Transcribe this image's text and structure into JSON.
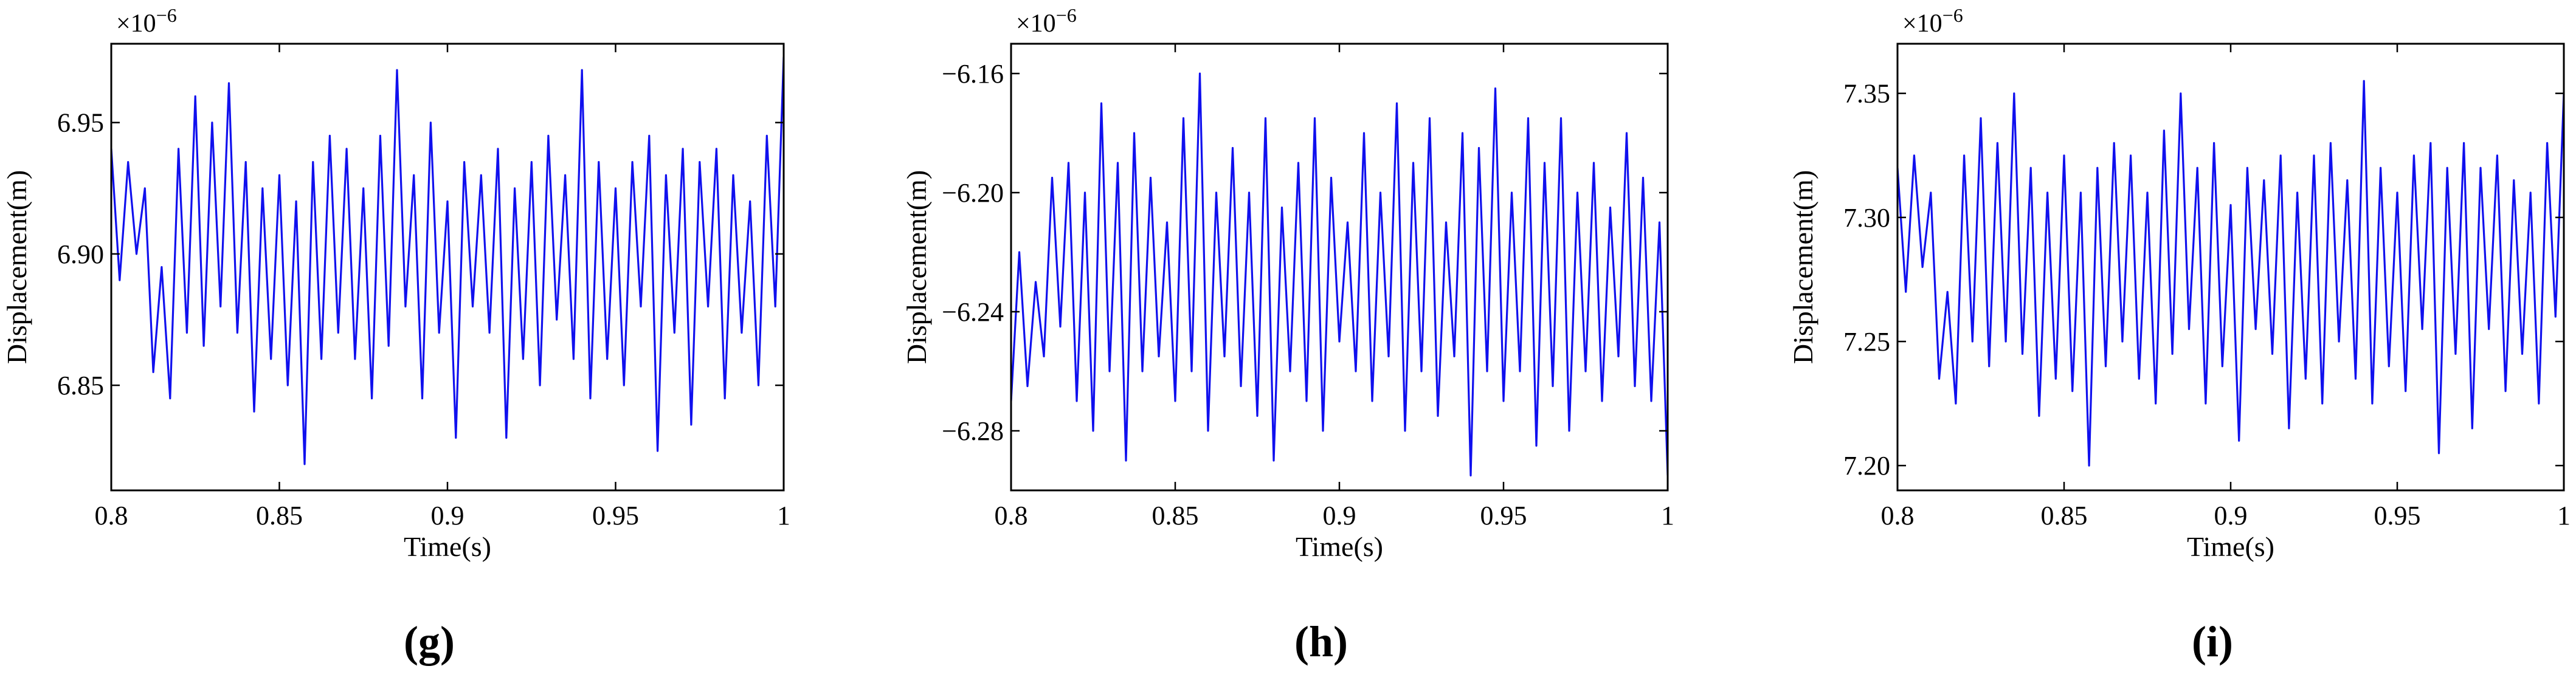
{
  "chart_data": [
    {
      "type": "line",
      "panel_label": "(g)",
      "xlabel": "Time(s)",
      "ylabel": "Displacement(m)",
      "y_exponent": "×10",
      "y_exponent_power": "−6",
      "xlim": [
        0.8,
        1.0
      ],
      "ylim": [
        6.81,
        6.98
      ],
      "x_ticks": [
        0.8,
        0.85,
        0.9,
        0.95,
        1.0
      ],
      "x_tick_labels": [
        "0.8",
        "0.85",
        "0.9",
        "0.95",
        "1"
      ],
      "y_ticks": [
        6.85,
        6.9,
        6.95
      ],
      "y_tick_labels": [
        "6.85",
        "6.90",
        "6.95"
      ],
      "grid": false,
      "color": "#1010ee",
      "series": [
        {
          "x": [
            0.8,
            0.8025,
            0.805,
            0.8075,
            0.81,
            0.8125,
            0.815,
            0.8175,
            0.82,
            0.8225,
            0.825,
            0.8275,
            0.83,
            0.8325,
            0.835,
            0.8375,
            0.84,
            0.8425,
            0.845,
            0.8475,
            0.85,
            0.8525,
            0.855,
            0.8575,
            0.86,
            0.8625,
            0.865,
            0.8675,
            0.87,
            0.8725,
            0.875,
            0.8775,
            0.88,
            0.8825,
            0.885,
            0.8875,
            0.89,
            0.8925,
            0.895,
            0.8975,
            0.9,
            0.9025,
            0.905,
            0.9075,
            0.91,
            0.9125,
            0.915,
            0.9175,
            0.92,
            0.9225,
            0.925,
            0.9275,
            0.93,
            0.9325,
            0.935,
            0.9375,
            0.94,
            0.9425,
            0.945,
            0.9475,
            0.95,
            0.9525,
            0.955,
            0.9575,
            0.96,
            0.9625,
            0.965,
            0.9675,
            0.97,
            0.9725,
            0.975,
            0.9775,
            0.98,
            0.9825,
            0.985,
            0.9875,
            0.99,
            0.9925,
            0.995,
            0.9975,
            1.0
          ],
          "y": [
            6.94,
            6.89,
            6.935,
            6.9,
            6.925,
            6.855,
            6.895,
            6.845,
            6.94,
            6.87,
            6.96,
            6.865,
            6.95,
            6.88,
            6.965,
            6.87,
            6.935,
            6.84,
            6.925,
            6.86,
            6.93,
            6.85,
            6.92,
            6.82,
            6.935,
            6.86,
            6.945,
            6.87,
            6.94,
            6.86,
            6.925,
            6.845,
            6.945,
            6.865,
            6.97,
            6.88,
            6.93,
            6.845,
            6.95,
            6.87,
            6.92,
            6.83,
            6.935,
            6.88,
            6.93,
            6.87,
            6.94,
            6.83,
            6.925,
            6.86,
            6.935,
            6.85,
            6.945,
            6.875,
            6.93,
            6.86,
            6.97,
            6.845,
            6.935,
            6.86,
            6.925,
            6.85,
            6.935,
            6.88,
            6.945,
            6.825,
            6.93,
            6.87,
            6.94,
            6.835,
            6.935,
            6.88,
            6.94,
            6.845,
            6.93,
            6.87,
            6.92,
            6.85,
            6.945,
            6.88,
            6.975
          ]
        }
      ]
    },
    {
      "type": "line",
      "panel_label": "(h)",
      "xlabel": "Time(s)",
      "ylabel": "Displacement(m)",
      "y_exponent": "×10",
      "y_exponent_power": "−6",
      "xlim": [
        0.8,
        1.0
      ],
      "ylim": [
        -6.3,
        -6.15
      ],
      "x_ticks": [
        0.8,
        0.85,
        0.9,
        0.95,
        1.0
      ],
      "x_tick_labels": [
        "0.8",
        "0.85",
        "0.9",
        "0.95",
        "1"
      ],
      "y_ticks": [
        -6.28,
        -6.24,
        -6.2,
        -6.16
      ],
      "y_tick_labels": [
        "−6.28",
        "−6.24",
        "−6.20",
        "−6.16"
      ],
      "grid": false,
      "color": "#1010ee",
      "series": [
        {
          "x": [
            0.8,
            0.8025,
            0.805,
            0.8075,
            0.81,
            0.8125,
            0.815,
            0.8175,
            0.82,
            0.8225,
            0.825,
            0.8275,
            0.83,
            0.8325,
            0.835,
            0.8375,
            0.84,
            0.8425,
            0.845,
            0.8475,
            0.85,
            0.8525,
            0.855,
            0.8575,
            0.86,
            0.8625,
            0.865,
            0.8675,
            0.87,
            0.8725,
            0.875,
            0.8775,
            0.88,
            0.8825,
            0.885,
            0.8875,
            0.89,
            0.8925,
            0.895,
            0.8975,
            0.9,
            0.9025,
            0.905,
            0.9075,
            0.91,
            0.9125,
            0.915,
            0.9175,
            0.92,
            0.9225,
            0.925,
            0.9275,
            0.93,
            0.9325,
            0.935,
            0.9375,
            0.94,
            0.9425,
            0.945,
            0.9475,
            0.95,
            0.9525,
            0.955,
            0.9575,
            0.96,
            0.9625,
            0.965,
            0.9675,
            0.97,
            0.9725,
            0.975,
            0.9775,
            0.98,
            0.9825,
            0.985,
            0.9875,
            0.99,
            0.9925,
            0.995,
            0.9975,
            1.0
          ],
          "y": [
            -6.27,
            -6.22,
            -6.265,
            -6.23,
            -6.255,
            -6.195,
            -6.245,
            -6.19,
            -6.27,
            -6.2,
            -6.28,
            -6.17,
            -6.26,
            -6.19,
            -6.29,
            -6.18,
            -6.26,
            -6.195,
            -6.255,
            -6.21,
            -6.27,
            -6.175,
            -6.26,
            -6.16,
            -6.28,
            -6.2,
            -6.255,
            -6.185,
            -6.265,
            -6.2,
            -6.275,
            -6.175,
            -6.29,
            -6.205,
            -6.26,
            -6.19,
            -6.27,
            -6.175,
            -6.28,
            -6.195,
            -6.25,
            -6.21,
            -6.26,
            -6.18,
            -6.27,
            -6.2,
            -6.255,
            -6.17,
            -6.28,
            -6.19,
            -6.26,
            -6.175,
            -6.275,
            -6.21,
            -6.255,
            -6.18,
            -6.295,
            -6.185,
            -6.26,
            -6.165,
            -6.27,
            -6.2,
            -6.26,
            -6.175,
            -6.285,
            -6.19,
            -6.265,
            -6.175,
            -6.28,
            -6.2,
            -6.26,
            -6.19,
            -6.27,
            -6.205,
            -6.255,
            -6.18,
            -6.265,
            -6.195,
            -6.27,
            -6.21,
            -6.295
          ]
        }
      ]
    },
    {
      "type": "line",
      "panel_label": "(i)",
      "xlabel": "Time(s)",
      "ylabel": "Displacement(m)",
      "y_exponent": "×10",
      "y_exponent_power": "−6",
      "xlim": [
        0.8,
        1.0
      ],
      "ylim": [
        7.19,
        7.37
      ],
      "x_ticks": [
        0.8,
        0.85,
        0.9,
        0.95,
        1.0
      ],
      "x_tick_labels": [
        "0.8",
        "0.85",
        "0.9",
        "0.95",
        "1"
      ],
      "y_ticks": [
        7.2,
        7.25,
        7.3,
        7.35
      ],
      "y_tick_labels": [
        "7.20",
        "7.25",
        "7.30",
        "7.35"
      ],
      "grid": false,
      "color": "#1010ee",
      "series": [
        {
          "x": [
            0.8,
            0.8025,
            0.805,
            0.8075,
            0.81,
            0.8125,
            0.815,
            0.8175,
            0.82,
            0.8225,
            0.825,
            0.8275,
            0.83,
            0.8325,
            0.835,
            0.8375,
            0.84,
            0.8425,
            0.845,
            0.8475,
            0.85,
            0.8525,
            0.855,
            0.8575,
            0.86,
            0.8625,
            0.865,
            0.8675,
            0.87,
            0.8725,
            0.875,
            0.8775,
            0.88,
            0.8825,
            0.885,
            0.8875,
            0.89,
            0.8925,
            0.895,
            0.8975,
            0.9,
            0.9025,
            0.905,
            0.9075,
            0.91,
            0.9125,
            0.915,
            0.9175,
            0.92,
            0.9225,
            0.925,
            0.9275,
            0.93,
            0.9325,
            0.935,
            0.9375,
            0.94,
            0.9425,
            0.945,
            0.9475,
            0.95,
            0.9525,
            0.955,
            0.9575,
            0.96,
            0.9625,
            0.965,
            0.9675,
            0.97,
            0.9725,
            0.975,
            0.9775,
            0.98,
            0.9825,
            0.985,
            0.9875,
            0.99,
            0.9925,
            0.995,
            0.9975,
            1.0
          ],
          "y": [
            7.32,
            7.27,
            7.325,
            7.28,
            7.31,
            7.235,
            7.27,
            7.225,
            7.325,
            7.25,
            7.34,
            7.24,
            7.33,
            7.25,
            7.35,
            7.245,
            7.32,
            7.22,
            7.31,
            7.235,
            7.325,
            7.23,
            7.31,
            7.2,
            7.32,
            7.24,
            7.33,
            7.25,
            7.325,
            7.235,
            7.31,
            7.225,
            7.335,
            7.245,
            7.35,
            7.255,
            7.32,
            7.225,
            7.33,
            7.24,
            7.305,
            7.21,
            7.32,
            7.255,
            7.315,
            7.245,
            7.325,
            7.215,
            7.31,
            7.235,
            7.325,
            7.225,
            7.33,
            7.25,
            7.315,
            7.235,
            7.355,
            7.225,
            7.32,
            7.24,
            7.31,
            7.23,
            7.325,
            7.255,
            7.33,
            7.205,
            7.32,
            7.245,
            7.33,
            7.215,
            7.32,
            7.255,
            7.325,
            7.23,
            7.315,
            7.245,
            7.31,
            7.225,
            7.33,
            7.26,
            7.35
          ]
        }
      ]
    }
  ]
}
